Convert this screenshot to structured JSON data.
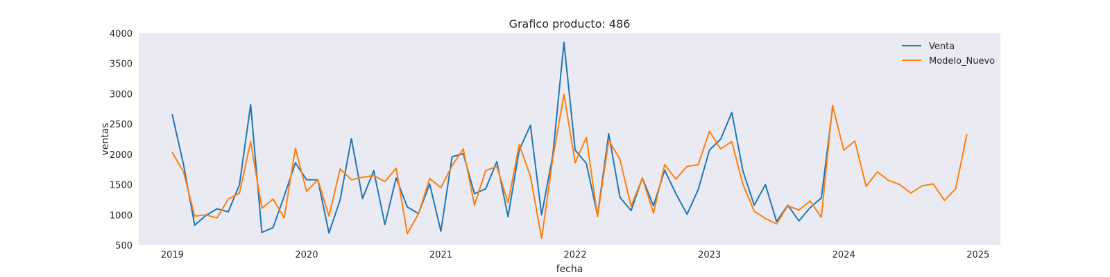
{
  "chart_data": {
    "type": "line",
    "title": "Grafico producto: 486",
    "xlabel": "fecha",
    "ylabel": "ventas",
    "ylim": [
      500,
      4000
    ],
    "yticks": [
      500,
      1000,
      1500,
      2000,
      2500,
      3000,
      3500,
      4000
    ],
    "xlim": [
      "2018-10",
      "2025-03"
    ],
    "xticks": [
      "2019",
      "2020",
      "2021",
      "2022",
      "2023",
      "2024",
      "2025"
    ],
    "grid": false,
    "legend": "top-right",
    "x_start": "2019-01",
    "x_step": "monthly",
    "series": [
      {
        "name": "Venta",
        "color": "#1f77b4",
        "values": [
          2650,
          1830,
          830,
          990,
          1100,
          1050,
          1500,
          2820,
          710,
          790,
          1310,
          1860,
          1580,
          1580,
          700,
          1250,
          2260,
          1270,
          1730,
          840,
          1610,
          1130,
          1020,
          1510,
          730,
          1960,
          2010,
          1350,
          1430,
          1880,
          970,
          2070,
          2480,
          1000,
          1980,
          3850,
          2070,
          1850,
          990,
          2340,
          1290,
          1070,
          1610,
          1150,
          1740,
          1350,
          1010,
          1420,
          2070,
          2250,
          2690,
          1720,
          1160,
          1500,
          890,
          1160,
          900,
          1120,
          1280,
          2760
        ]
      },
      {
        "name": "Modelo_Nuevo",
        "color": "#ff7f0e",
        "values": [
          2030,
          1710,
          980,
          1000,
          950,
          1260,
          1360,
          2210,
          1110,
          1260,
          950,
          2100,
          1390,
          1580,
          980,
          1760,
          1580,
          1620,
          1650,
          1550,
          1770,
          690,
          1020,
          1600,
          1450,
          1810,
          2090,
          1160,
          1730,
          1800,
          1200,
          2160,
          1640,
          610,
          1930,
          2990,
          1860,
          2280,
          970,
          2230,
          1920,
          1140,
          1610,
          1030,
          1830,
          1590,
          1800,
          1830,
          2380,
          2090,
          2210,
          1500,
          1060,
          940,
          850,
          1150,
          1080,
          1230,
          960,
          2810,
          2070,
          2220,
          1470,
          1710,
          1570,
          1500,
          1360,
          1480,
          1510,
          1240,
          1430,
          2330
        ]
      }
    ]
  }
}
